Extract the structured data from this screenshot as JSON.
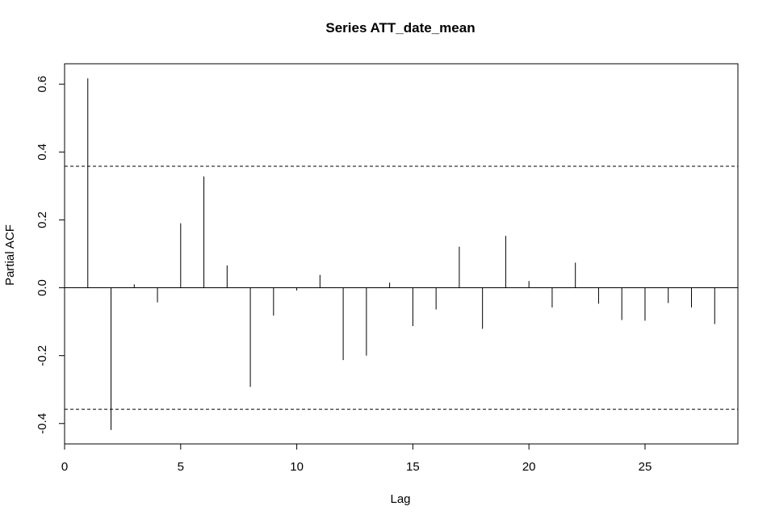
{
  "chart_data": {
    "type": "bar",
    "title": "Series  ATT_date_mean",
    "xlabel": "Lag",
    "ylabel": "Partial ACF",
    "xlim": [
      0,
      29
    ],
    "ylim": [
      -0.46,
      0.66
    ],
    "x_ticks": [
      0,
      5,
      10,
      15,
      20,
      25
    ],
    "x_tick_labels": [
      "0",
      "5",
      "10",
      "15",
      "20",
      "25"
    ],
    "y_ticks": [
      -0.4,
      -0.2,
      0.0,
      0.2,
      0.4,
      0.6
    ],
    "y_tick_labels": [
      "-0.4",
      "-0.2",
      "0.0",
      "0.2",
      "0.4",
      "0.6"
    ],
    "confidence_bounds": [
      0.358,
      -0.358
    ],
    "grid": false,
    "lags": [
      1,
      2,
      3,
      4,
      5,
      6,
      7,
      8,
      9,
      10,
      11,
      12,
      13,
      14,
      15,
      16,
      17,
      18,
      19,
      20,
      21,
      22,
      23,
      24,
      25,
      26,
      27,
      28
    ],
    "values": [
      0.617,
      -0.419,
      0.01,
      -0.043,
      0.19,
      0.328,
      0.066,
      -0.292,
      -0.082,
      -0.008,
      0.038,
      -0.213,
      -0.2,
      0.015,
      -0.113,
      -0.064,
      0.121,
      -0.121,
      0.153,
      0.02,
      -0.058,
      0.074,
      -0.047,
      -0.095,
      -0.097,
      -0.045,
      -0.058,
      -0.107
    ]
  }
}
